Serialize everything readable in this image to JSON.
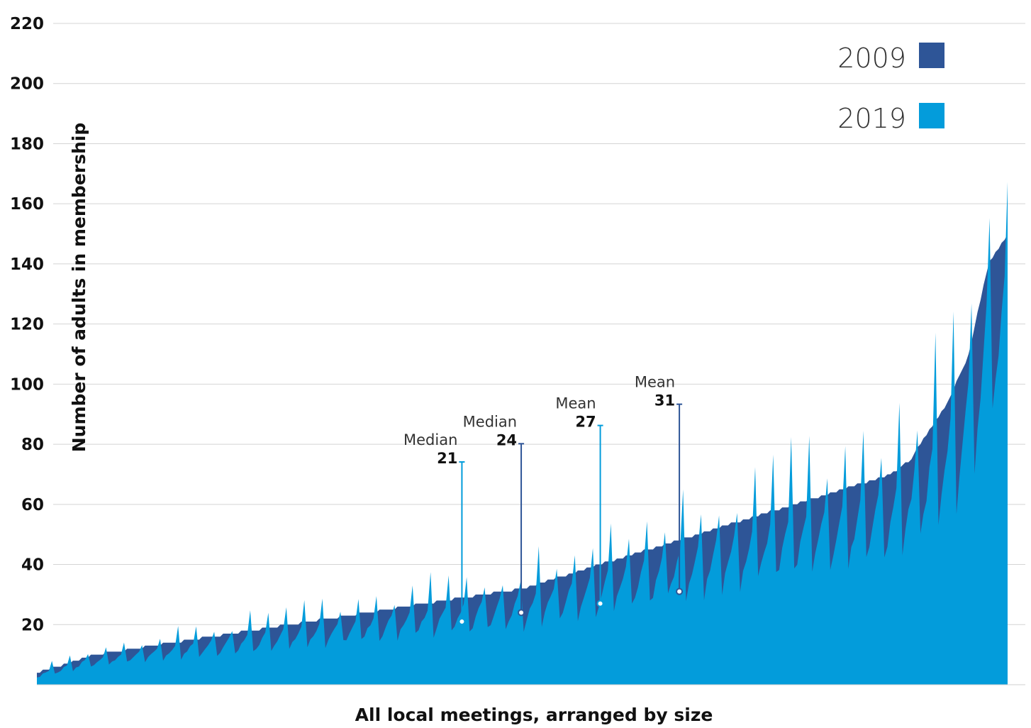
{
  "chart_data": {
    "type": "area",
    "xlabel": "All local meetings, arranged by size",
    "ylabel": "Number of adults in membership",
    "ylim": [
      0,
      220
    ],
    "yticks": [
      20,
      40,
      60,
      80,
      100,
      120,
      140,
      160,
      180,
      200,
      220
    ],
    "grid": true,
    "legend_position": "top-right",
    "series": [
      {
        "name": "2009",
        "color": "#2e5597",
        "description_values": [
          4,
          6,
          8,
          10,
          11,
          12,
          13,
          14,
          15,
          16,
          17,
          18,
          19,
          20,
          21,
          22,
          23,
          24,
          25,
          26,
          27,
          28,
          29,
          30,
          31,
          32,
          34,
          36,
          38,
          40,
          42,
          44,
          46,
          48,
          50,
          52,
          54,
          56,
          58,
          60,
          62,
          64,
          66,
          68,
          70,
          75,
          85,
          95,
          110,
          140,
          150
        ]
      },
      {
        "name": "2019",
        "color": "#039cdb"
      }
    ],
    "annotations": [
      {
        "label": "Median",
        "value": 21,
        "series": "2019",
        "position_fraction": 0.43
      },
      {
        "label": "Median",
        "value": 24,
        "series": "2009",
        "position_fraction": 0.49
      },
      {
        "label": "Mean",
        "value": 27,
        "series": "2019",
        "position_fraction": 0.57
      },
      {
        "label": "Mean",
        "value": 31,
        "series": "2009",
        "position_fraction": 0.65
      }
    ]
  }
}
